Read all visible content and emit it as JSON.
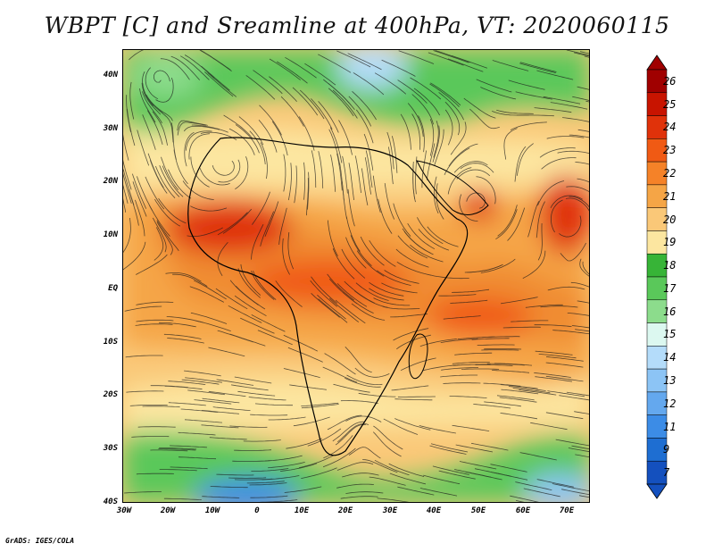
{
  "title": "WBPT [C] and Sreamline at 400hPa, VT: 2020060115",
  "credit": "GrADS: IGES/COLA",
  "lat_labels": [
    "40N",
    "30N",
    "20N",
    "10N",
    "EQ",
    "10S",
    "20S",
    "30S",
    "40S"
  ],
  "lon_labels": [
    "30W",
    "20W",
    "10W",
    "0",
    "10E",
    "20E",
    "30E",
    "40E",
    "50E",
    "60E",
    "70E"
  ],
  "colorbar": {
    "labels": [
      "26",
      "25",
      "24",
      "23",
      "22",
      "21",
      "20",
      "19",
      "18",
      "17",
      "16",
      "15",
      "14",
      "13",
      "12",
      "11",
      "9",
      "7"
    ],
    "colors": [
      "#a00000",
      "#c81400",
      "#e0320a",
      "#f05a14",
      "#f58228",
      "#f5a546",
      "#fac878",
      "#fce6a0",
      "#37b437",
      "#5ac85a",
      "#8cdc8c",
      "#dcf8f0",
      "#b4dcfa",
      "#8cc4f5",
      "#64a8ee",
      "#3c8ce6",
      "#1e6ed2",
      "#1450be"
    ]
  },
  "colors": {
    "hot_core": "#c8280a",
    "warm": "#f08c32",
    "mild": "#fac878",
    "cool": "#37b437",
    "cold": "#3c8ce6"
  }
}
